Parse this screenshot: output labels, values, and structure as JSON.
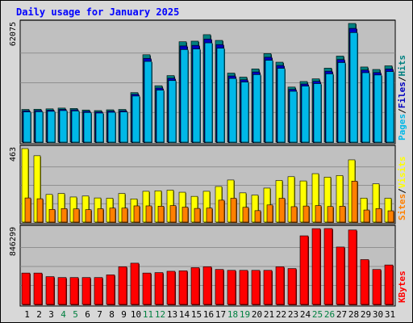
{
  "chart_data": {
    "type": "bar",
    "title": "Daily usage for January 2025",
    "categories": [
      "1",
      "2",
      "3",
      "4",
      "5",
      "6",
      "7",
      "8",
      "9",
      "10",
      "11",
      "12",
      "13",
      "14",
      "15",
      "16",
      "17",
      "18",
      "19",
      "20",
      "21",
      "22",
      "23",
      "24",
      "25",
      "26",
      "27",
      "28",
      "29",
      "30",
      "31"
    ],
    "weekend_days": [
      "4",
      "5",
      "11",
      "12",
      "18",
      "19",
      "25",
      "26"
    ],
    "colors": {
      "title": "#0000ff",
      "weekday_label": "#000000",
      "weekend_label": "#008040",
      "pages": "#00b8e8",
      "files": "#0000c0",
      "hits": "#008080",
      "visits": "#ffff00",
      "sites": "#ff8000",
      "kbytes": "#ff0000",
      "plot_bg": "#c0c0c0",
      "frame_bg": "#d8d8d8"
    },
    "panels": [
      {
        "id": "hits",
        "max_label": "62075",
        "ylim": [
          0,
          62075
        ],
        "legend": [
          "Pages",
          "Files",
          "Hits"
        ],
        "series": [
          {
            "name": "Hits",
            "values": [
              17100,
              17200,
              17400,
              17800,
              17600,
              16800,
              16500,
              16900,
              17100,
              25900,
              45700,
              29500,
              34800,
              52500,
              52800,
              56200,
              53200,
              36100,
              34000,
              38300,
              46300,
              41800,
              28800,
              31700,
              33100,
              38700,
              45000,
              62075,
              39300,
              38000,
              39900
            ]
          },
          {
            "name": "Files",
            "values": [
              16400,
              16500,
              16700,
              17100,
              16900,
              16100,
              15800,
              16200,
              16400,
              25000,
              43800,
              28300,
              33400,
              50300,
              50600,
              53900,
              51000,
              34600,
              32600,
              36700,
              44400,
              40100,
              27600,
              30400,
              31800,
              37100,
              43200,
              59500,
              37700,
              36400,
              38300
            ]
          },
          {
            "name": "Pages",
            "values": [
              15800,
              15900,
              16100,
              16500,
              16300,
              15500,
              15200,
              15600,
              15800,
              24100,
              42200,
              27200,
              32200,
              48400,
              48700,
              51900,
              49100,
              33300,
              31400,
              35300,
              42800,
              38600,
              26600,
              29300,
              30600,
              35700,
              41600,
              57300,
              36300,
              35100,
              36900
            ]
          }
        ]
      },
      {
        "id": "visits",
        "max_label": "463",
        "ylim": [
          0,
          463
        ],
        "legend": [
          "Sites",
          "Visits"
        ],
        "series": [
          {
            "name": "Visits",
            "values": [
              463,
              418,
              174,
              180,
              158,
              164,
              152,
              150,
              180,
              146,
              194,
              197,
              201,
              188,
              162,
              194,
              224,
              265,
              184,
              170,
              214,
              262,
              286,
              259,
              305,
              283,
              293,
              392,
              151,
              241,
              150
            ]
          },
          {
            "name": "Sites",
            "values": [
              152,
              147,
              80,
              85,
              83,
              78,
              84,
              88,
              88,
              102,
              102,
              100,
              104,
              94,
              86,
              88,
              138,
              150,
              93,
              72,
              108,
              150,
              97,
              101,
              104,
              98,
              100,
              258,
              76,
              85,
              71
            ]
          }
        ]
      },
      {
        "id": "kbytes",
        "max_label": "846299",
        "ylim": [
          0,
          846299
        ],
        "legend": [
          "KBytes"
        ],
        "series": [
          {
            "name": "KBytes",
            "values": [
              350000,
              350000,
              310000,
              300000,
              300000,
              300000,
              300000,
              330000,
              420000,
              460000,
              350000,
              355000,
              370000,
              375000,
              410000,
              420000,
              390000,
              380000,
              380000,
              380000,
              380000,
              420000,
              400000,
              765000,
              845000,
              846299,
              640000,
              830000,
              500000,
              390000,
              440000
            ]
          }
        ]
      }
    ]
  }
}
